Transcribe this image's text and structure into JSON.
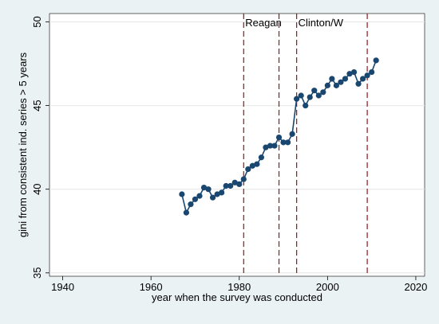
{
  "chart_data": {
    "type": "line",
    "title": "",
    "xlabel": "year when the survey was conducted",
    "ylabel": "gini from consistent ind. series > 5 years",
    "xlim": [
      1937,
      2022
    ],
    "ylim": [
      34.8,
      50.5
    ],
    "xticks": [
      1940,
      1960,
      1980,
      2000,
      2020
    ],
    "yticks": [
      35,
      40,
      45,
      50
    ],
    "grid": "horizontal",
    "legend": "none",
    "colors": {
      "line": "#1a476f",
      "marker": "#1a476f",
      "reference_line": "#8b1a1a",
      "grid": "#e6e6e6",
      "plot_bg": "#ffffff",
      "outer_bg": "#eaf2f3"
    },
    "reference_lines": [
      {
        "x": 1981,
        "label": "Reagan"
      },
      {
        "x": 1989,
        "label": ""
      },
      {
        "x": 1993,
        "label": "Clinton/W"
      },
      {
        "x": 2009,
        "label": ""
      }
    ],
    "series": [
      {
        "x": [
          1967,
          1968,
          1969,
          1970,
          1971,
          1972,
          1973,
          1974,
          1975,
          1976,
          1977,
          1978,
          1979,
          1980,
          1981,
          1982,
          1983,
          1984,
          1985,
          1986,
          1987,
          1988,
          1989,
          1990,
          1991,
          1992,
          1993,
          1994,
          1995,
          1996,
          1997,
          1998,
          1999,
          2000,
          2001,
          2002,
          2003,
          2004,
          2005,
          2006,
          2007,
          2008,
          2009,
          2010,
          2011
        ],
        "y": [
          39.7,
          38.6,
          39.1,
          39.4,
          39.6,
          40.1,
          40.0,
          39.5,
          39.7,
          39.8,
          40.2,
          40.2,
          40.4,
          40.3,
          40.6,
          41.2,
          41.4,
          41.5,
          41.9,
          42.5,
          42.6,
          42.6,
          43.1,
          42.8,
          42.8,
          43.3,
          45.4,
          45.6,
          45.0,
          45.5,
          45.9,
          45.6,
          45.8,
          46.2,
          46.6,
          46.2,
          46.4,
          46.6,
          46.9,
          47.0,
          46.3,
          46.6,
          46.8,
          47.0,
          47.7
        ]
      }
    ]
  }
}
